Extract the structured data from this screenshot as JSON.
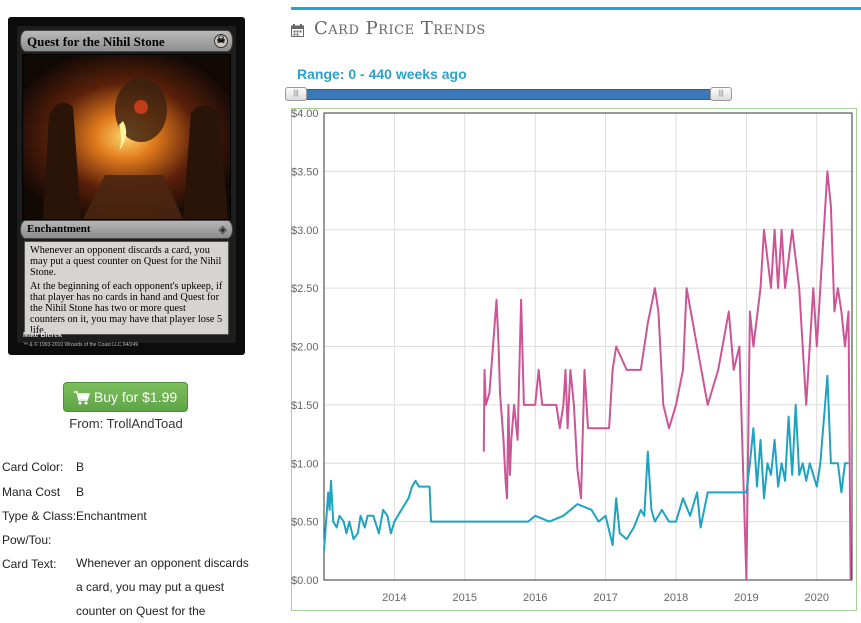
{
  "card": {
    "name": "Quest for the Nihil Stone",
    "type_line": "Enchantment",
    "mana_symbol": "☠",
    "rules_text": [
      "Whenever an opponent discards a card, you may put a quest counter on Quest for the Nihil Stone.",
      "At the beginning of each opponent's upkeep, if that player has no cards in hand and Quest for the Nihil Stone has two or more quest counters on it, you may have that player lose 5 life."
    ],
    "artist": "Mike Bierek",
    "copyright": "™ & © 1993-2010 Wizards of the Coast LLC 64/249"
  },
  "buy": {
    "label": "Buy for $1.99",
    "from": "From: TrollAndToad"
  },
  "details": {
    "color_label": "Card Color:",
    "color_value": "B",
    "cost_label": "Mana Cost",
    "cost_value": "B",
    "type_label": "Type & Class:",
    "type_value": "Enchantment",
    "powtou_label": "Pow/Tou:",
    "powtou_value": "",
    "text_label": "Card Text:",
    "text_value": "Whenever an opponent discards a card, you may put a quest counter on Quest for the"
  },
  "chart_section": {
    "heading": "Card Price Trends",
    "range_label": "Range: 0 - 440 weeks ago",
    "range_min_weeks": 0,
    "range_max_weeks": 440,
    "icon": "calendar-icon"
  },
  "colors": {
    "accent": "#2aa3cc",
    "pink": "#cc5595",
    "teal": "#1ea3c0",
    "buy": "#68ad4e"
  },
  "chart_data": {
    "type": "line",
    "x_ticks": [
      "2014",
      "2015",
      "2016",
      "2017",
      "2018",
      "2019",
      "2020"
    ],
    "y_ticks": [
      "$0.00",
      "$0.50",
      "$1.00",
      "$1.50",
      "$2.00",
      "$2.50",
      "$3.00",
      "$3.50",
      "$4.00"
    ],
    "xlim": [
      2013.0,
      2020.5
    ],
    "ylim": [
      0,
      4
    ],
    "grid": true,
    "series": [
      {
        "color": "#cc5595",
        "points": [
          [
            2015.27,
            1.1
          ],
          [
            2015.28,
            1.8
          ],
          [
            2015.3,
            1.5
          ],
          [
            2015.35,
            1.6
          ],
          [
            2015.4,
            2.0
          ],
          [
            2015.45,
            2.4
          ],
          [
            2015.48,
            2.0
          ],
          [
            2015.5,
            1.6
          ],
          [
            2015.55,
            1.2
          ],
          [
            2015.58,
            0.85
          ],
          [
            2015.6,
            0.7
          ],
          [
            2015.62,
            1.5
          ],
          [
            2015.64,
            0.9
          ],
          [
            2015.66,
            1.2
          ],
          [
            2015.7,
            1.5
          ],
          [
            2015.75,
            1.2
          ],
          [
            2015.8,
            2.4
          ],
          [
            2015.84,
            1.5
          ],
          [
            2016.0,
            1.5
          ],
          [
            2016.05,
            1.8
          ],
          [
            2016.1,
            1.5
          ],
          [
            2016.3,
            1.5
          ],
          [
            2016.35,
            1.3
          ],
          [
            2016.4,
            1.5
          ],
          [
            2016.43,
            1.8
          ],
          [
            2016.46,
            1.3
          ],
          [
            2016.5,
            1.8
          ],
          [
            2016.55,
            1.5
          ],
          [
            2016.6,
            0.95
          ],
          [
            2016.65,
            0.7
          ],
          [
            2016.7,
            1.8
          ],
          [
            2016.75,
            1.3
          ],
          [
            2017.0,
            1.3
          ],
          [
            2017.05,
            1.3
          ],
          [
            2017.1,
            1.8
          ],
          [
            2017.15,
            2.0
          ],
          [
            2017.3,
            1.8
          ],
          [
            2017.5,
            1.8
          ],
          [
            2017.6,
            2.2
          ],
          [
            2017.7,
            2.5
          ],
          [
            2017.75,
            2.3
          ],
          [
            2017.82,
            1.5
          ],
          [
            2017.9,
            1.3
          ],
          [
            2018.0,
            1.5
          ],
          [
            2018.1,
            1.8
          ],
          [
            2018.15,
            2.5
          ],
          [
            2018.3,
            2.0
          ],
          [
            2018.45,
            1.5
          ],
          [
            2018.6,
            1.8
          ],
          [
            2018.75,
            2.3
          ],
          [
            2018.82,
            1.8
          ],
          [
            2018.9,
            2.0
          ],
          [
            2019.0,
            0.0
          ],
          [
            2019.05,
            2.3
          ],
          [
            2019.1,
            2.0
          ],
          [
            2019.2,
            2.5
          ],
          [
            2019.25,
            3.0
          ],
          [
            2019.35,
            2.5
          ],
          [
            2019.4,
            3.0
          ],
          [
            2019.45,
            2.5
          ],
          [
            2019.5,
            3.0
          ],
          [
            2019.55,
            2.5
          ],
          [
            2019.65,
            3.0
          ],
          [
            2019.75,
            2.5
          ],
          [
            2019.85,
            1.5
          ],
          [
            2019.95,
            2.5
          ],
          [
            2020.0,
            2.0
          ],
          [
            2020.05,
            2.5
          ],
          [
            2020.15,
            3.5
          ],
          [
            2020.2,
            3.2
          ],
          [
            2020.25,
            2.3
          ],
          [
            2020.3,
            2.5
          ],
          [
            2020.35,
            2.3
          ],
          [
            2020.4,
            2.0
          ],
          [
            2020.45,
            2.3
          ],
          [
            2020.48,
            0.0
          ]
        ]
      },
      {
        "color": "#1ea3c0",
        "points": [
          [
            2013.0,
            0.25
          ],
          [
            2013.03,
            0.5
          ],
          [
            2013.06,
            0.75
          ],
          [
            2013.08,
            0.6
          ],
          [
            2013.1,
            0.85
          ],
          [
            2013.13,
            0.5
          ],
          [
            2013.18,
            0.45
          ],
          [
            2013.22,
            0.55
          ],
          [
            2013.28,
            0.5
          ],
          [
            2013.32,
            0.4
          ],
          [
            2013.36,
            0.5
          ],
          [
            2013.42,
            0.35
          ],
          [
            2013.48,
            0.4
          ],
          [
            2013.52,
            0.55
          ],
          [
            2013.58,
            0.45
          ],
          [
            2013.62,
            0.55
          ],
          [
            2013.7,
            0.55
          ],
          [
            2013.78,
            0.4
          ],
          [
            2013.84,
            0.6
          ],
          [
            2013.9,
            0.55
          ],
          [
            2013.95,
            0.4
          ],
          [
            2014.0,
            0.5
          ],
          [
            2014.1,
            0.6
          ],
          [
            2014.2,
            0.7
          ],
          [
            2014.25,
            0.8
          ],
          [
            2014.3,
            0.85
          ],
          [
            2014.35,
            0.8
          ],
          [
            2014.5,
            0.8
          ],
          [
            2014.52,
            0.5
          ],
          [
            2014.8,
            0.5
          ],
          [
            2015.0,
            0.5
          ],
          [
            2015.5,
            0.5
          ],
          [
            2015.9,
            0.5
          ],
          [
            2016.0,
            0.55
          ],
          [
            2016.2,
            0.5
          ],
          [
            2016.4,
            0.55
          ],
          [
            2016.6,
            0.65
          ],
          [
            2016.8,
            0.6
          ],
          [
            2016.9,
            0.5
          ],
          [
            2017.0,
            0.55
          ],
          [
            2017.1,
            0.3
          ],
          [
            2017.15,
            0.7
          ],
          [
            2017.2,
            0.4
          ],
          [
            2017.3,
            0.35
          ],
          [
            2017.4,
            0.45
          ],
          [
            2017.5,
            0.6
          ],
          [
            2017.55,
            0.55
          ],
          [
            2017.6,
            1.1
          ],
          [
            2017.65,
            0.6
          ],
          [
            2017.7,
            0.5
          ],
          [
            2017.8,
            0.6
          ],
          [
            2017.9,
            0.5
          ],
          [
            2018.0,
            0.5
          ],
          [
            2018.1,
            0.7
          ],
          [
            2018.2,
            0.55
          ],
          [
            2018.3,
            0.75
          ],
          [
            2018.35,
            0.45
          ],
          [
            2018.45,
            0.75
          ],
          [
            2018.7,
            0.75
          ],
          [
            2019.0,
            0.75
          ],
          [
            2019.05,
            1.0
          ],
          [
            2019.1,
            1.3
          ],
          [
            2019.15,
            0.8
          ],
          [
            2019.2,
            1.2
          ],
          [
            2019.25,
            0.7
          ],
          [
            2019.3,
            1.0
          ],
          [
            2019.35,
            0.9
          ],
          [
            2019.4,
            1.2
          ],
          [
            2019.45,
            0.8
          ],
          [
            2019.5,
            1.0
          ],
          [
            2019.55,
            0.85
          ],
          [
            2019.6,
            1.4
          ],
          [
            2019.65,
            0.9
          ],
          [
            2019.7,
            1.5
          ],
          [
            2019.75,
            0.9
          ],
          [
            2019.8,
            1.0
          ],
          [
            2019.85,
            0.85
          ],
          [
            2019.9,
            1.0
          ],
          [
            2020.0,
            0.8
          ],
          [
            2020.05,
            1.0
          ],
          [
            2020.15,
            1.75
          ],
          [
            2020.2,
            1.0
          ],
          [
            2020.3,
            1.0
          ],
          [
            2020.35,
            0.75
          ],
          [
            2020.4,
            1.0
          ],
          [
            2020.45,
            1.0
          ]
        ]
      }
    ]
  }
}
